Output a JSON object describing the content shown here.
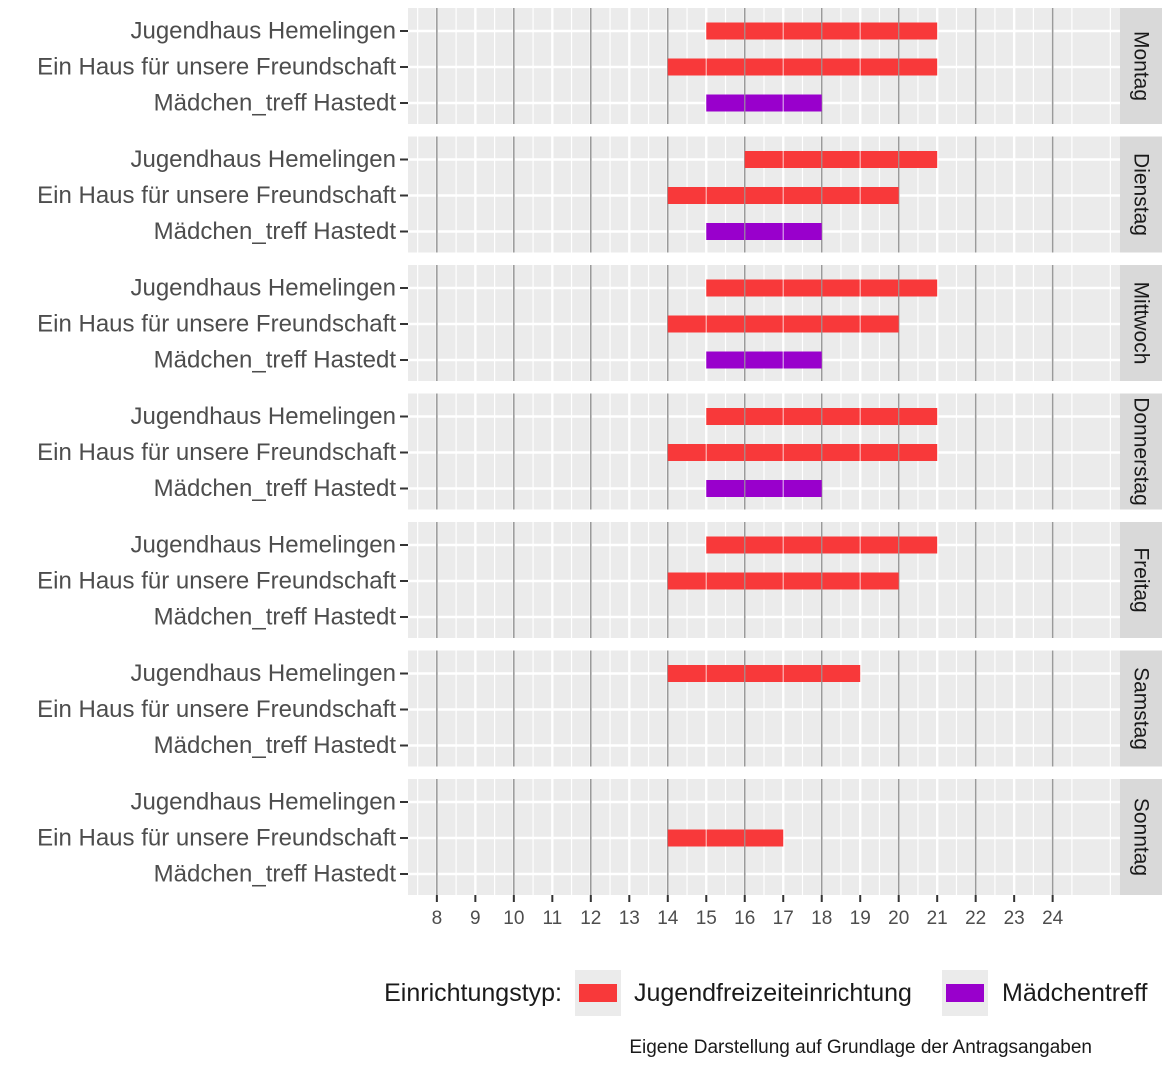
{
  "chart_data": {
    "type": "bar",
    "orientation": "horizontal-range",
    "facets": [
      "Montag",
      "Dienstag",
      "Mittwoch",
      "Donnerstag",
      "Freitag",
      "Samstag",
      "Sonntag"
    ],
    "categories": [
      "Jugendhaus Hemelingen",
      "Ein Haus für unsere Freundschaft",
      "Mädchen_treff Hastedt"
    ],
    "x_ticks": [
      8,
      9,
      10,
      11,
      12,
      13,
      14,
      15,
      16,
      17,
      18,
      19,
      20,
      21,
      22,
      23,
      24
    ],
    "xlim": [
      7.25,
      25.75
    ],
    "grid": true,
    "types": {
      "Jugendfreizeiteinrichtung": {
        "color": "#f8393a"
      },
      "Mädchentreff": {
        "color": "#9900cc"
      }
    },
    "bars": [
      {
        "facet": "Montag",
        "category": "Jugendhaus Hemelingen",
        "start": 15,
        "end": 21,
        "type": "Jugendfreizeiteinrichtung"
      },
      {
        "facet": "Montag",
        "category": "Ein Haus für unsere Freundschaft",
        "start": 14,
        "end": 21,
        "type": "Jugendfreizeiteinrichtung"
      },
      {
        "facet": "Montag",
        "category": "Mädchen_treff Hastedt",
        "start": 15,
        "end": 18,
        "type": "Mädchentreff"
      },
      {
        "facet": "Dienstag",
        "category": "Jugendhaus Hemelingen",
        "start": 16,
        "end": 21,
        "type": "Jugendfreizeiteinrichtung"
      },
      {
        "facet": "Dienstag",
        "category": "Ein Haus für unsere Freundschaft",
        "start": 14,
        "end": 20,
        "type": "Jugendfreizeiteinrichtung"
      },
      {
        "facet": "Dienstag",
        "category": "Mädchen_treff Hastedt",
        "start": 15,
        "end": 18,
        "type": "Mädchentreff"
      },
      {
        "facet": "Mittwoch",
        "category": "Jugendhaus Hemelingen",
        "start": 15,
        "end": 21,
        "type": "Jugendfreizeiteinrichtung"
      },
      {
        "facet": "Mittwoch",
        "category": "Ein Haus für unsere Freundschaft",
        "start": 14,
        "end": 20,
        "type": "Jugendfreizeiteinrichtung"
      },
      {
        "facet": "Mittwoch",
        "category": "Mädchen_treff Hastedt",
        "start": 15,
        "end": 18,
        "type": "Mädchentreff"
      },
      {
        "facet": "Donnerstag",
        "category": "Jugendhaus Hemelingen",
        "start": 15,
        "end": 21,
        "type": "Jugendfreizeiteinrichtung"
      },
      {
        "facet": "Donnerstag",
        "category": "Ein Haus für unsere Freundschaft",
        "start": 14,
        "end": 21,
        "type": "Jugendfreizeiteinrichtung"
      },
      {
        "facet": "Donnerstag",
        "category": "Mädchen_treff Hastedt",
        "start": 15,
        "end": 18,
        "type": "Mädchentreff"
      },
      {
        "facet": "Freitag",
        "category": "Jugendhaus Hemelingen",
        "start": 15,
        "end": 21,
        "type": "Jugendfreizeiteinrichtung"
      },
      {
        "facet": "Freitag",
        "category": "Ein Haus für unsere Freundschaft",
        "start": 14,
        "end": 20,
        "type": "Jugendfreizeiteinrichtung"
      },
      {
        "facet": "Samstag",
        "category": "Jugendhaus Hemelingen",
        "start": 14,
        "end": 19,
        "type": "Jugendfreizeiteinrichtung"
      },
      {
        "facet": "Sonntag",
        "category": "Ein Haus für unsere Freundschaft",
        "start": 14,
        "end": 17,
        "type": "Jugendfreizeiteinrichtung"
      }
    ],
    "legend": {
      "title": "Einrichtungstyp:",
      "placement": "bottom",
      "entries": [
        "Jugendfreizeiteinrichtung",
        "Mädchentreff"
      ]
    },
    "caption": "Eigene Darstellung auf Grundlage der Antragsangaben"
  }
}
